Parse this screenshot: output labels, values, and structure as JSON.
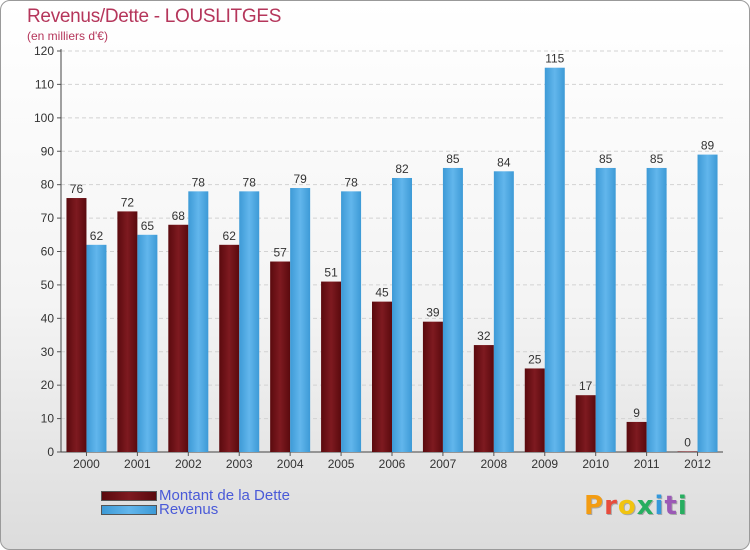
{
  "page": {
    "title": "Revenus/Dette - LOUSLITGES",
    "subtitle": "(en milliers d'€)",
    "logo": "Proxiti",
    "logo_colors": [
      "#f39c12",
      "#e74c3c",
      "#f1c40f",
      "#27ae60",
      "#3498db",
      "#9b59b6",
      "#27ae60"
    ]
  },
  "colors": {
    "dette": "#6b0d12",
    "revenus": "#4aa6e0",
    "title": "#b5365b",
    "legend_text": "#4a5ad8"
  },
  "chart_data": {
    "type": "bar",
    "title": "Revenus/Dette - LOUSLITGES",
    "subtitle": "(en milliers d'€)",
    "categories": [
      "2000",
      "2001",
      "2002",
      "2003",
      "2004",
      "2005",
      "2006",
      "2007",
      "2008",
      "2009",
      "2010",
      "2011",
      "2012"
    ],
    "series": [
      {
        "name": "Montant de la Dette",
        "values": [
          76,
          72,
          68,
          62,
          57,
          51,
          45,
          39,
          32,
          25,
          17,
          9,
          0
        ]
      },
      {
        "name": "Revenus",
        "values": [
          62,
          65,
          78,
          78,
          79,
          78,
          82,
          85,
          84,
          115,
          85,
          85,
          89
        ]
      }
    ],
    "ylim": [
      0,
      120
    ],
    "yticks": [
      0,
      10,
      20,
      30,
      40,
      50,
      60,
      70,
      80,
      90,
      100,
      110,
      120
    ],
    "grid": true,
    "legend_position": "bottom-left"
  }
}
